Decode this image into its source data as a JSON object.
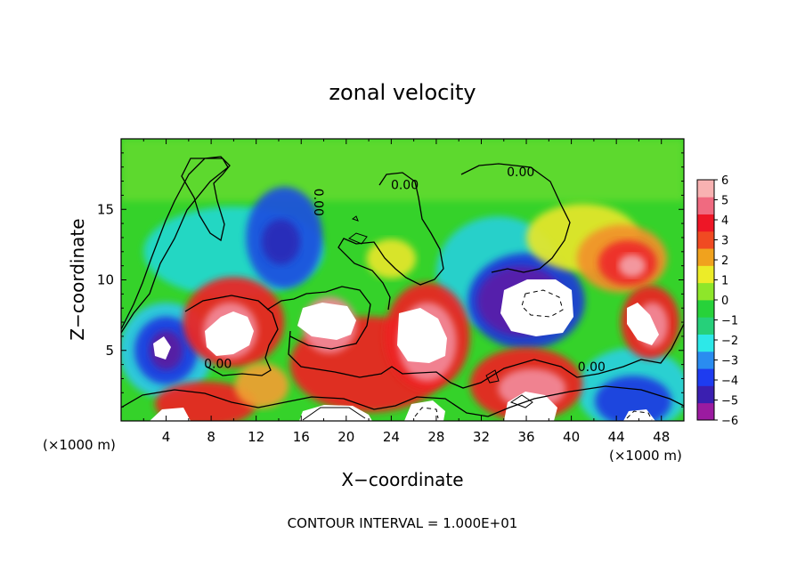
{
  "chart_data": {
    "type": "heatmap",
    "title": "zonal velocity",
    "xlabel": "X−coordinate",
    "ylabel": "Z−coordinate",
    "x_unit_left": "(×1000 m)",
    "x_unit_right": "(×1000 m)",
    "footer": "CONTOUR INTERVAL = 1.000E+01",
    "xlim": [
      0,
      50
    ],
    "ylim": [
      0,
      20
    ],
    "x_ticks": [
      "4",
      "8",
      "12",
      "16",
      "20",
      "24",
      "28",
      "32",
      "36",
      "40",
      "44",
      "48"
    ],
    "y_ticks": [
      "5",
      "10",
      "15"
    ],
    "colorbar": {
      "min": -6,
      "max": 6,
      "labels": [
        "6",
        "5",
        "4",
        "3",
        "2",
        "1",
        "0",
        "−1",
        "−2",
        "−3",
        "−4",
        "−5",
        "−6"
      ],
      "colors": [
        "#9b1ba0",
        "#3a1fb0",
        "#1e3cf0",
        "#2a8cf0",
        "#2de8e8",
        "#26d07a",
        "#27d23a",
        "#8ee62a",
        "#ecec28",
        "#f0a21e",
        "#f04a22",
        "#ee1626",
        "#f06a80",
        "#f8b2b2"
      ]
    },
    "contour_labels": [
      {
        "text": "0.00",
        "x": 17.5,
        "z": 15.5,
        "angle": 90
      },
      {
        "text": "0.00",
        "x": 25.2,
        "z": 16.7,
        "angle": 0
      },
      {
        "text": "0.00",
        "x": 35.5,
        "z": 17.6,
        "angle": 0
      },
      {
        "text": "0.00",
        "x": 8.6,
        "z": 4.0,
        "angle": 0
      },
      {
        "text": "0.00",
        "x": 41.8,
        "z": 3.8,
        "angle": 0
      }
    ]
  }
}
